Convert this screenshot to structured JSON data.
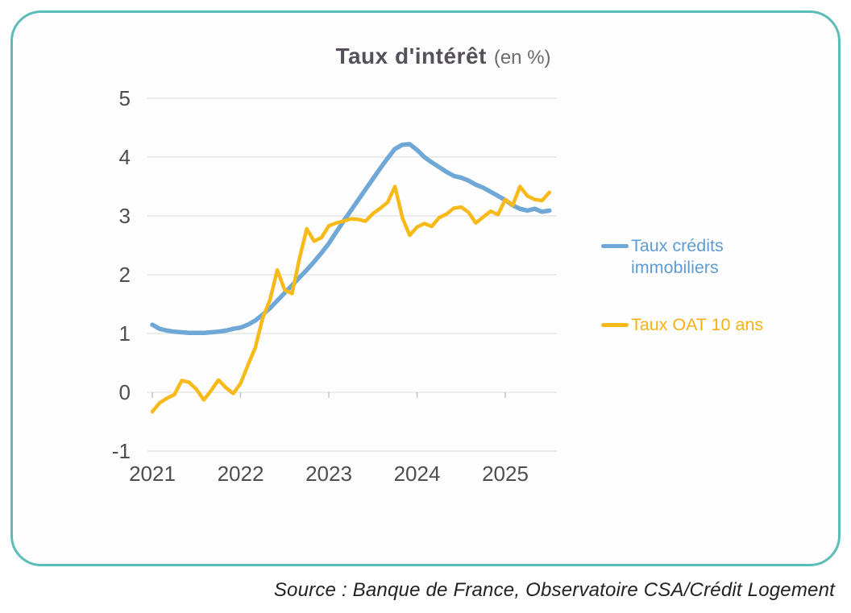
{
  "title": {
    "main": "Taux d'intérêt",
    "suffix": "(en %)"
  },
  "axis": {
    "label_color": "#4E4E4E",
    "grid_color": "#E1E1E1",
    "tick_color": "#C4C4C4"
  },
  "card": {
    "border_color": "#5CBDB8",
    "background": "#FDFDFD"
  },
  "chart_data": {
    "type": "line",
    "title": "Taux d'intérêt (en %)",
    "xlabel": "",
    "ylabel": "",
    "x_unit": "month",
    "x_start": "2021-01",
    "x_end": "2025-07",
    "x_tick_labels": [
      "2021",
      "2022",
      "2023",
      "2024",
      "2025"
    ],
    "y_ticks": [
      5,
      4,
      3,
      2,
      1,
      0,
      -1
    ],
    "ylim": [
      -1,
      5
    ],
    "grid": true,
    "legend_position": "right",
    "series": [
      {
        "name": "Taux crédits immobiliers",
        "color": "#6FA8D6",
        "label_color": "#5E9CD3",
        "values": [
          1.15,
          1.08,
          1.05,
          1.03,
          1.02,
          1.01,
          1.01,
          1.01,
          1.02,
          1.03,
          1.05,
          1.08,
          1.1,
          1.15,
          1.22,
          1.32,
          1.43,
          1.56,
          1.69,
          1.82,
          1.95,
          2.08,
          2.22,
          2.37,
          2.53,
          2.72,
          2.91,
          3.09,
          3.27,
          3.45,
          3.63,
          3.81,
          3.98,
          4.14,
          4.21,
          4.22,
          4.12,
          4.0,
          3.91,
          3.83,
          3.75,
          3.68,
          3.65,
          3.6,
          3.53,
          3.48,
          3.41,
          3.34,
          3.27,
          3.18,
          3.12,
          3.09,
          3.12,
          3.07,
          3.09
        ]
      },
      {
        "name": "Taux OAT 10 ans",
        "color": "#F8BA1B",
        "label_color": "#F2B313",
        "values": [
          -0.33,
          -0.18,
          -0.1,
          -0.04,
          0.2,
          0.17,
          0.05,
          -0.13,
          0.03,
          0.21,
          0.08,
          -0.02,
          0.15,
          0.46,
          0.76,
          1.26,
          1.57,
          2.08,
          1.74,
          1.68,
          2.27,
          2.78,
          2.57,
          2.63,
          2.83,
          2.88,
          2.91,
          2.95,
          2.94,
          2.91,
          3.04,
          3.13,
          3.23,
          3.5,
          2.97,
          2.67,
          2.81,
          2.87,
          2.82,
          2.97,
          3.03,
          3.13,
          3.15,
          3.06,
          2.88,
          2.98,
          3.08,
          3.02,
          3.28,
          3.18,
          3.5,
          3.34,
          3.28,
          3.26,
          3.4
        ]
      }
    ]
  },
  "source": {
    "text": "Source : Banque de France, Observatoire CSA/Crédit Logement"
  }
}
